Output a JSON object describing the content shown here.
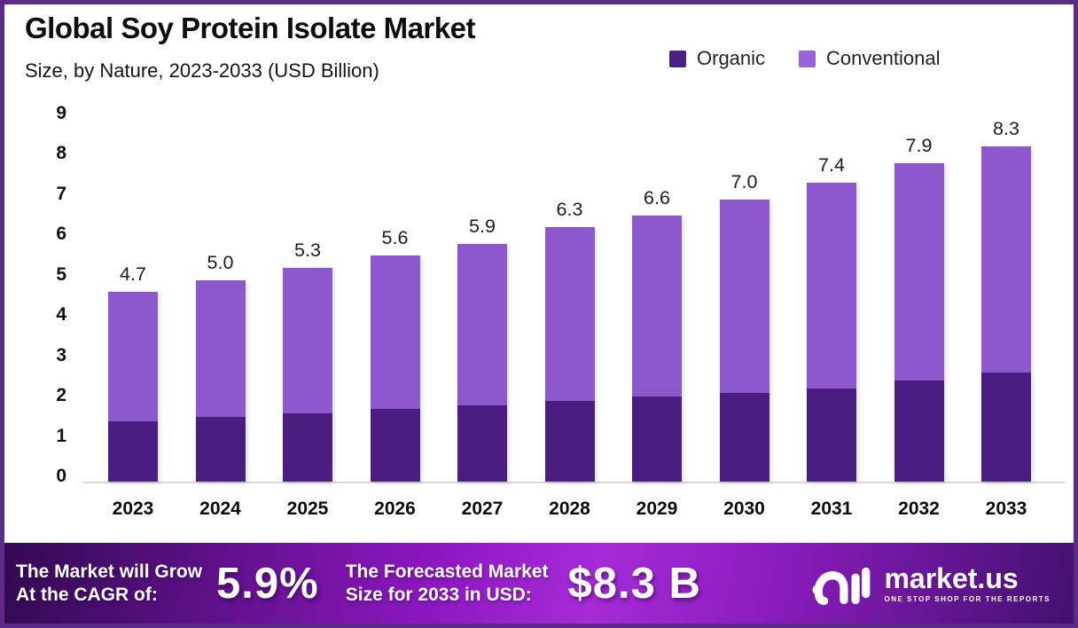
{
  "header": {
    "title": "Global Soy Protein Isolate Market",
    "subtitle": "Size, by Nature, 2023-2033 (USD Billion)"
  },
  "legend": [
    {
      "label": "Organic",
      "color": "#4a2182"
    },
    {
      "label": "Conventional",
      "color": "#9a63dc"
    }
  ],
  "colors": {
    "organic_bar": "#4a1d80",
    "conventional_bar": "#8d58cd",
    "border": "#5c2b8a",
    "axis_line": "#d8d8d8",
    "banner_gradient": [
      "#320a52",
      "#8c17c0",
      "#a62bd6",
      "#8a1cbd",
      "#44106f"
    ],
    "banner_text": "#ffffff"
  },
  "chart_data": {
    "type": "bar",
    "stacked": true,
    "title": "Global Soy Protein Isolate Market",
    "subtitle": "Size, by Nature, 2023-2033 (USD Billion)",
    "ylabel": "USD Billion",
    "xlabel": "",
    "categories": [
      "2023",
      "2024",
      "2025",
      "2026",
      "2027",
      "2028",
      "2029",
      "2030",
      "2031",
      "2032",
      "2033"
    ],
    "series": [
      {
        "name": "Organic",
        "values": [
          1.5,
          1.6,
          1.7,
          1.8,
          1.9,
          2.0,
          2.1,
          2.2,
          2.3,
          2.5,
          2.7
        ]
      },
      {
        "name": "Conventional",
        "values": [
          3.2,
          3.4,
          3.6,
          3.8,
          4.0,
          4.3,
          4.5,
          4.8,
          5.1,
          5.4,
          5.6
        ]
      }
    ],
    "totals": [
      4.7,
      5.0,
      5.3,
      5.6,
      5.9,
      6.3,
      6.6,
      7.0,
      7.4,
      7.9,
      8.3
    ],
    "total_labels": [
      "4.7",
      "5.0",
      "5.3",
      "5.6",
      "5.9",
      "6.3",
      "6.6",
      "7.0",
      "7.4",
      "7.9",
      "8.3"
    ],
    "ylim": [
      0,
      9
    ],
    "yticks": [
      0,
      1,
      2,
      3,
      4,
      5,
      6,
      7,
      8,
      9
    ],
    "grid": false,
    "legend_position": "top-right"
  },
  "footer": {
    "cagr_label_line1": "The Market will Grow",
    "cagr_label_line2": "At the CAGR of:",
    "cagr_value": "5.9%",
    "forecast_label_line1": "The Forecasted Market",
    "forecast_label_line2": "Size for 2033 in USD:",
    "forecast_value": "$8.3 B",
    "logo_text": "market.us",
    "logo_tagline": "ONE STOP SHOP FOR THE REPORTS"
  }
}
